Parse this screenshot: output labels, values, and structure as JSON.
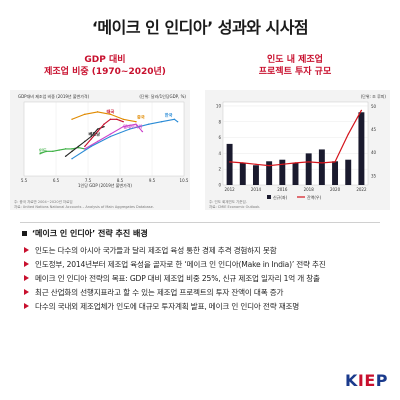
{
  "title": "‘메이크 인 인디아’ 성과와 시사점",
  "chart_data": [
    {
      "type": "line",
      "panel_title_line1": "GDP 대비",
      "panel_title_line2": "제조업 비중 (1970~2020년)",
      "subtitle": "GDP대비 제조업 비중 (2019년 불변가격)",
      "unit_label": "(단위: 달러/1인당GDP, %)",
      "xlabel": "1인당 GDP (2019년 불변가격)",
      "xlim": [
        5.5,
        10.5
      ],
      "ylim": [
        5,
        35
      ],
      "x_ticks": [
        5.5,
        6.5,
        7.5,
        8.5,
        9.5,
        10.5
      ],
      "x_tick_labels": [
        "5.5",
        "6.5",
        "7.5",
        "8.5",
        "9.5",
        "10.5"
      ],
      "series": [
        {
          "name": "인도",
          "color": "#3cb043",
          "points": [
            [
              6.0,
              14
            ],
            [
              6.2,
              15
            ],
            [
              6.4,
              15
            ],
            [
              6.6,
              15.5
            ],
            [
              6.8,
              16
            ],
            [
              7.0,
              16
            ],
            [
              7.2,
              16.5
            ],
            [
              7.4,
              16
            ]
          ]
        },
        {
          "name": "베트남",
          "color": "#222222",
          "points": [
            [
              6.8,
              13
            ],
            [
              7.0,
              15
            ],
            [
              7.2,
              17
            ],
            [
              7.4,
              19
            ],
            [
              7.6,
              21
            ],
            [
              7.8,
              24
            ],
            [
              8.0,
              25
            ]
          ]
        },
        {
          "name": "태국",
          "color": "#c8102e",
          "points": [
            [
              7.4,
              17
            ],
            [
              7.6,
              20
            ],
            [
              7.8,
              23
            ],
            [
              8.0,
              26
            ],
            [
              8.2,
              28
            ],
            [
              8.4,
              28
            ],
            [
              8.6,
              27
            ]
          ]
        },
        {
          "name": "중국",
          "color": "#e08a00",
          "points": [
            [
              7.0,
              28
            ],
            [
              7.4,
              30
            ],
            [
              7.8,
              31
            ],
            [
              8.2,
              30
            ],
            [
              8.6,
              28
            ],
            [
              9.0,
              27
            ]
          ]
        },
        {
          "name": "말레이시아",
          "color": "#cc44cc",
          "points": [
            [
              7.4,
              16
            ],
            [
              7.8,
              19
            ],
            [
              8.2,
              22
            ],
            [
              8.6,
              25
            ],
            [
              9.0,
              26
            ],
            [
              9.2,
              23
            ]
          ]
        },
        {
          "name": "한국",
          "color": "#2a8bd6",
          "points": [
            [
              7.0,
              12
            ],
            [
              7.6,
              17
            ],
            [
              8.2,
              21
            ],
            [
              8.8,
              24
            ],
            [
              9.4,
              26
            ],
            [
              9.8,
              27
            ],
            [
              10.2,
              28
            ],
            [
              10.3,
              27
            ]
          ]
        }
      ],
      "note_line1": "주: 중국 자료만 2004~2020년 자료임",
      "note_line2": "자료: United Nations National Accounts – Analysis of Main Aggregates Database."
    },
    {
      "type": "bar",
      "panel_title_line1": "인도 내 제조업",
      "panel_title_line2": "프로젝트 투자 규모",
      "unit_label": "(단위: 조 루피)",
      "categories": [
        "2012",
        "2013",
        "2014",
        "2015",
        "2016",
        "2017",
        "2018",
        "2019",
        "2020",
        "2021",
        "2022"
      ],
      "x_tick_labels": [
        "2012",
        "2014",
        "2016",
        "2018",
        "2020",
        "2022"
      ],
      "y_ticks_left": [
        0,
        2,
        4,
        6,
        8,
        10
      ],
      "y_ticks_right": [
        35,
        40,
        45,
        50
      ],
      "ylim_left": [
        0,
        10.5
      ],
      "ylim_right": [
        33,
        51
      ],
      "series": [
        {
          "name": "신규(좌)",
          "type": "bar",
          "color": "#1a1a2e",
          "values": [
            5.2,
            2.8,
            2.5,
            3.0,
            3.2,
            2.8,
            4.0,
            4.5,
            3.0,
            3.2,
            9.2
          ]
        },
        {
          "name": "잔액(우)",
          "type": "line",
          "color": "#d4141c",
          "values": [
            38.0,
            37.8,
            37.5,
            37.2,
            37.5,
            37.8,
            38.0,
            37.8,
            38.0,
            44.0,
            49.2
          ]
        }
      ],
      "legend_position": "bottom",
      "note_line1": "주: 인도 회계연도 기준임.",
      "note_line2": "자료: CMIE Economic Outlook."
    }
  ],
  "section": {
    "heading": "‘메이크 인 인디아’ 전략 추진 배경",
    "items": [
      "인도는 다수의 아시아 국가들과 달리 제조업 육성 통한 경제 추격 경험하지 못함",
      "인도정부, 2014년부터 제조업 육성을 골자로 한 ‘메이크 인 인디아(Make in India)’ 전략 추진",
      "메이크 인 인디아 전략의 목표: GDP 대비 제조업 비중 25%, 신규 제조업 일자리 1억 개 창출",
      "최근 산업화의 선행지표라고 할 수 있는 제조업 프로젝트의 투자 잔액이 대폭 증가",
      "다수의 국내외 제조업체가 인도에 대규모 투자계획 발표, 메이크 인 인디아 전략 재조명"
    ]
  },
  "logo": {
    "text_k": "K",
    "text_ie": "IE",
    "text_p": "P"
  },
  "colors": {
    "accent": "#c8102e",
    "brand": "#1a3a8c"
  }
}
